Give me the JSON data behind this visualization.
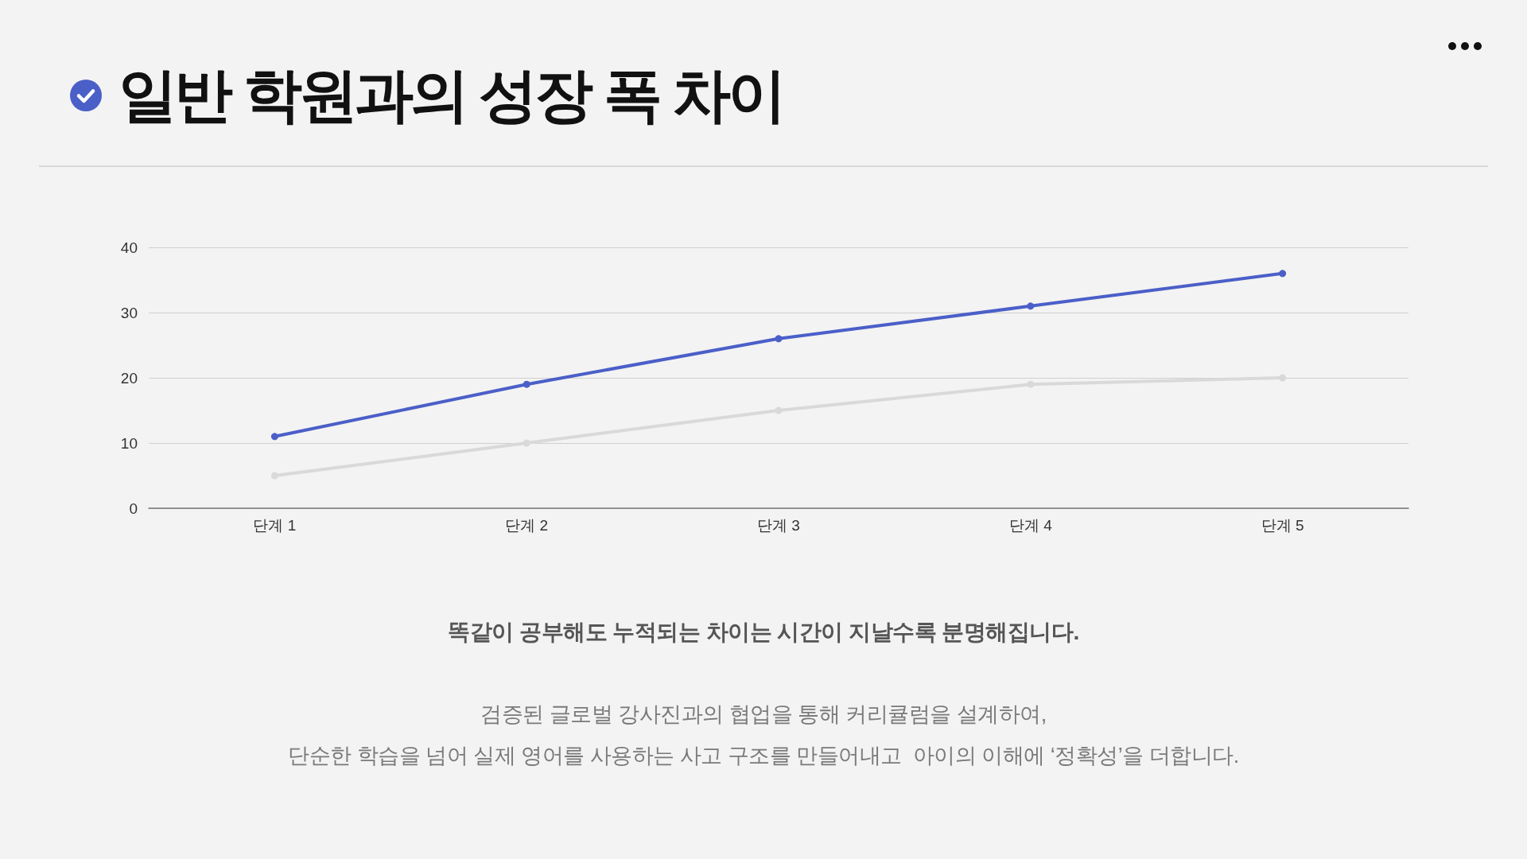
{
  "chart_data": {
    "type": "line",
    "title": "일반 학원과의 성장 폭 차이",
    "categories": [
      "단계 1",
      "단계 2",
      "단계 3",
      "단계 4",
      "단계 5"
    ],
    "series": [
      {
        "color": "#4b5fc8",
        "values": [
          11,
          19,
          26,
          31,
          36
        ]
      },
      {
        "color": "#d9d9d9",
        "values": [
          5,
          10,
          15,
          19,
          20
        ]
      }
    ],
    "ylim": [
      0,
      40
    ],
    "yticks": [
      0,
      10,
      20,
      30,
      40
    ],
    "grid": "y",
    "marker": "circle",
    "line_style": "solid",
    "annotations": [
      "똑같이 공부해도 누적되는 차이는 시간이 지날수록 분명해집니다.",
      "검증된 글로벌 강사진과의 협업을 통해 커리큘럼을 설계하여,",
      "단순한 학습을 넘어 실제 영어를 사용하는 사고 구조를 만들어내고  아이의 이해에 ‘정확성’을 더합니다."
    ]
  }
}
